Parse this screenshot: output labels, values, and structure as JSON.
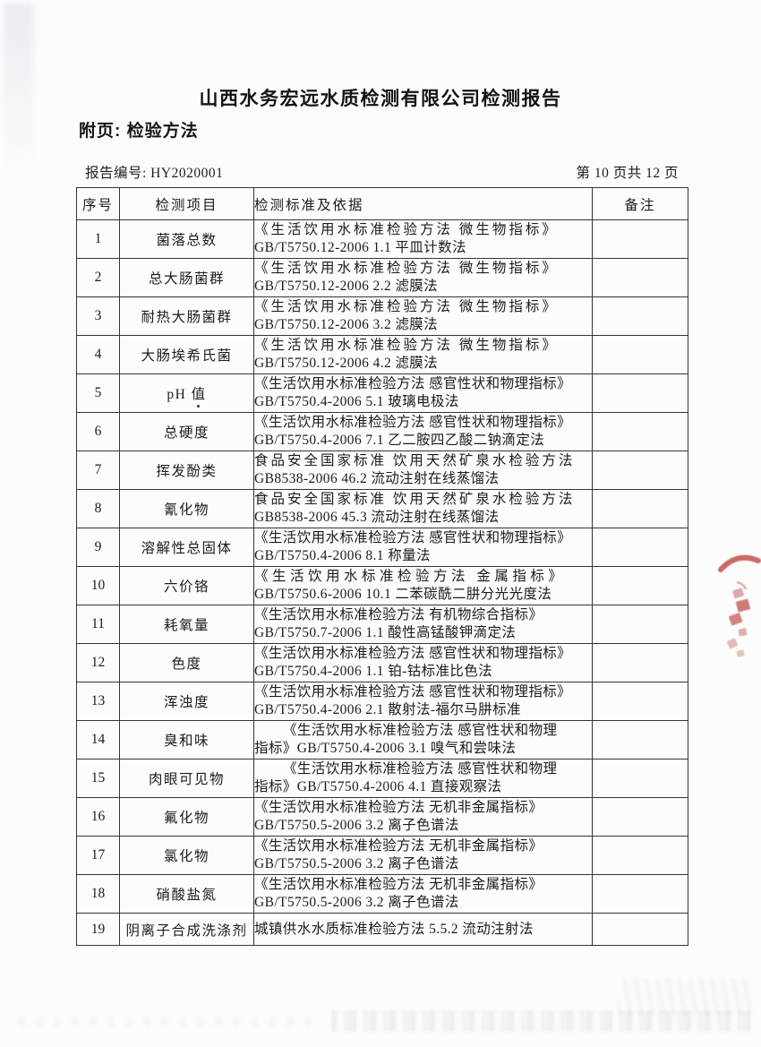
{
  "page": {
    "title": "山西水务宏远水质检测有限公司检测报告",
    "subtitle": "附页: 检验方法",
    "report_no": "报告编号: HY2020001",
    "page_info": "第 10 页共 12 页"
  },
  "stamp": {
    "name": "partial-red-seal",
    "color": "#b5342c"
  },
  "table": {
    "headers": [
      "序号",
      "检测项目",
      "检测标准及依据",
      "备注"
    ],
    "rows": [
      {
        "no": "1",
        "item": "菌落总数",
        "line1": "《生活饮用水标准检验方法  微生物指标》",
        "line2": "GB/T5750.12-2006   1.1 平皿计数法",
        "remark": "",
        "sp": 1,
        "indent": false,
        "dot": false
      },
      {
        "no": "2",
        "item": "总大肠菌群",
        "line1": "《生活饮用水标准检验方法  微生物指标》",
        "line2": "GB/T5750.12-2006   2.2 滤膜法",
        "remark": "",
        "sp": 1,
        "indent": false,
        "dot": false
      },
      {
        "no": "3",
        "item": "耐热大肠菌群",
        "line1": "《生活饮用水标准检验方法  微生物指标》",
        "line2": "GB/T5750.12-2006   3.2 滤膜法",
        "remark": "",
        "sp": 1,
        "indent": false,
        "dot": false
      },
      {
        "no": "4",
        "item": "大肠埃希氏菌",
        "line1": "《生活饮用水标准检验方法  微生物指标》",
        "line2": "GB/T5750.12-2006   4.2 滤膜法",
        "remark": "",
        "sp": 1,
        "indent": false,
        "dot": false
      },
      {
        "no": "5",
        "item": "pH 值",
        "line1": "《生活饮用水标准检验方法 感官性状和物理指标》",
        "line2": "GB/T5750.4-2006   5.1 玻璃电极法",
        "remark": "",
        "sp": 0,
        "indent": false,
        "dot": true
      },
      {
        "no": "6",
        "item": "总硬度",
        "line1": "《生活饮用水标准检验方法 感官性状和物理指标》",
        "line2": "GB/T5750.4-2006   7.1 乙二胺四乙酸二钠滴定法",
        "remark": "",
        "sp": 0,
        "indent": false,
        "dot": false
      },
      {
        "no": "7",
        "item": "挥发酚类",
        "line1": "食品安全国家标准  饮用天然矿泉水检验方法",
        "line2": "GB8538-2006    46.2 流动注射在线蒸馏法",
        "remark": "",
        "sp": 1,
        "indent": false,
        "dot": false
      },
      {
        "no": "8",
        "item": "氰化物",
        "line1": "食品安全国家标准  饮用天然矿泉水检验方法",
        "line2": "GB8538-2006    45.3 流动注射在线蒸馏法",
        "remark": "",
        "sp": 1,
        "indent": false,
        "dot": false
      },
      {
        "no": "9",
        "item": "溶解性总固体",
        "line1": "《生活饮用水标准检验方法 感官性状和物理指标》",
        "line2": "GB/T5750.4-2006   8.1 称量法",
        "remark": "",
        "sp": 0,
        "indent": false,
        "dot": false
      },
      {
        "no": "10",
        "item": "六价铬",
        "line1": "《生活饮用水标准检验方法  金属指标》",
        "line2": "GB/T5750.6-2006   10.1 二苯碳酰二肼分光光度法",
        "remark": "",
        "sp": 2,
        "indent": false,
        "dot": false
      },
      {
        "no": "11",
        "item": "耗氧量",
        "line1": "《生活饮用水标准检验方法 有机物综合指标》",
        "line2": "GB/T5750.7-2006   1.1 酸性高锰酸钾滴定法",
        "remark": "",
        "sp": 0,
        "indent": false,
        "dot": false
      },
      {
        "no": "12",
        "item": "色度",
        "line1": "《生活饮用水标准检验方法 感官性状和物理指标》",
        "line2": "GB/T5750.4-2006   1.1 铂-钴标准比色法",
        "remark": "",
        "sp": 0,
        "indent": false,
        "dot": false
      },
      {
        "no": "13",
        "item": "浑浊度",
        "line1": "《生活饮用水标准检验方法 感官性状和物理指标》",
        "line2": "GB/T5750.4-2006   2.1 散射法-福尔马肼标准",
        "remark": "",
        "sp": 0,
        "indent": false,
        "dot": false
      },
      {
        "no": "14",
        "item": "臭和味",
        "line1": "《生活饮用水标准检验方法 感官性状和物理",
        "line2": "指标》GB/T5750.4-2006 3.1 嗅气和尝味法",
        "remark": "",
        "sp": 0,
        "indent": true,
        "dot": false
      },
      {
        "no": "15",
        "item": "肉眼可见物",
        "line1": "《生活饮用水标准检验方法 感官性状和物理",
        "line2": "指标》GB/T5750.4-2006 4.1 直接观察法",
        "remark": "",
        "sp": 0,
        "indent": true,
        "dot": false
      },
      {
        "no": "16",
        "item": "氟化物",
        "line1": "《生活饮用水标准检验方法 无机非金属指标》",
        "line2": "GB/T5750.5-2006   3.2 离子色谱法",
        "remark": "",
        "sp": 0,
        "indent": false,
        "dot": false
      },
      {
        "no": "17",
        "item": "氯化物",
        "line1": "《生活饮用水标准检验方法 无机非金属指标》",
        "line2": "GB/T5750.5-2006   3.2 离子色谱法",
        "remark": "",
        "sp": 0,
        "indent": false,
        "dot": false
      },
      {
        "no": "18",
        "item": "硝酸盐氮",
        "line1": "《生活饮用水标准检验方法 无机非金属指标》",
        "line2": "GB/T5750.5-2006   3.2 离子色谱法",
        "remark": "",
        "sp": 0,
        "indent": false,
        "dot": false
      },
      {
        "no": "19",
        "item": "阴离子合成洗涤剂",
        "line1": "城镇供水水质标准检验方法 5.5.2   流动注射法",
        "line2": "",
        "remark": "",
        "sp": 0,
        "indent": false,
        "dot": false
      }
    ]
  }
}
